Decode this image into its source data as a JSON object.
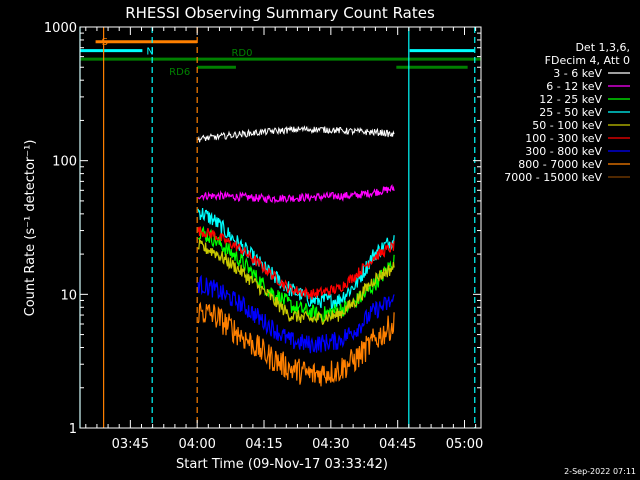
{
  "chart_data": {
    "type": "line",
    "title": "RHESSI Observing Summary Count Rates",
    "xlabel": "Start Time (09-Nov-17 03:33:42)",
    "ylabel": "Count Rate (s⁻¹ detector⁻¹)",
    "yscale": "log",
    "ylim": [
      1,
      1000
    ],
    "xlim_minutes": [
      0,
      90
    ],
    "x_unit": "minutes since 03:33:42",
    "x_ticks": [
      {
        "label": "03:45",
        "t": 11.3
      },
      {
        "label": "04:00",
        "t": 26.3
      },
      {
        "label": "04:15",
        "t": 41.3
      },
      {
        "label": "04:30",
        "t": 56.3
      },
      {
        "label": "04:45",
        "t": 71.3
      },
      {
        "label": "05:00",
        "t": 86.3
      }
    ],
    "y_ticks": [
      {
        "label": "1",
        "v": 1
      },
      {
        "label": "10",
        "v": 10
      },
      {
        "label": "100",
        "v": 100
      },
      {
        "label": "1000",
        "v": 1000
      }
    ],
    "legend": {
      "position": "right",
      "header": [
        "Det 1,3,6,",
        "FDecim 4, Att 0"
      ],
      "entries": [
        {
          "label": "3 - 6 keV",
          "color": "#000000"
        },
        {
          "label": "6 - 12 keV",
          "color": "#ff00ff"
        },
        {
          "label": "12 - 25 keV",
          "color": "#00ff00"
        },
        {
          "label": "25 - 50 keV",
          "color": "#00ffff"
        },
        {
          "label": "50 - 100 keV",
          "color": "#c8c800"
        },
        {
          "label": "100 - 300 keV",
          "color": "#ff0000"
        },
        {
          "label": "300 - 800 keV",
          "color": "#0000ff"
        },
        {
          "label": "800 - 7000 keV",
          "color": "#ff8000"
        },
        {
          "label": "7000 - 15000 keV",
          "color": "#804000"
        }
      ]
    },
    "series_time_range_minutes": [
      26.5,
      70.5
    ],
    "series": [
      {
        "name": "3 - 6 keV",
        "color": "#000000",
        "jitter": 0.025,
        "t": [
          26.5,
          34,
          42,
          50,
          56,
          62,
          68,
          70.5
        ],
        "values": [
          145,
          155,
          165,
          172,
          170,
          165,
          162,
          155
        ]
      },
      {
        "name": "6 - 12 keV",
        "color": "#ff00ff",
        "jitter": 0.03,
        "t": [
          26.5,
          34,
          42,
          50,
          56,
          62,
          66,
          70.5
        ],
        "values": [
          55,
          54,
          52,
          53,
          54,
          55,
          58,
          62
        ]
      },
      {
        "name": "25 - 50 keV",
        "color": "#00ffff",
        "jitter": 0.06,
        "t": [
          26.5,
          30,
          35,
          42,
          47,
          52,
          58,
          62,
          66,
          70.5
        ],
        "values": [
          42,
          36,
          25,
          15,
          11,
          9,
          9,
          12,
          20,
          26
        ]
      },
      {
        "name": "12 - 25 keV",
        "color": "#00ff00",
        "jitter": 0.06,
        "t": [
          26.5,
          30,
          36,
          42,
          48,
          54,
          60,
          64,
          68,
          70.5
        ],
        "values": [
          30,
          26,
          18,
          11,
          8,
          7,
          8,
          10,
          14,
          18
        ]
      },
      {
        "name": "100 - 300 keV",
        "color": "#ff0000",
        "jitter": 0.04,
        "t": [
          26.5,
          30,
          36,
          42,
          47,
          52,
          58,
          62,
          66,
          70.5
        ],
        "values": [
          30,
          28,
          22,
          15,
          11,
          10,
          11,
          14,
          19,
          23
        ]
      },
      {
        "name": "50 - 100 keV",
        "color": "#c8c800",
        "jitter": 0.05,
        "t": [
          26.5,
          30,
          36,
          42,
          47,
          52,
          58,
          62,
          66,
          70.5
        ],
        "values": [
          23,
          21,
          15,
          10,
          7,
          6.5,
          7,
          9,
          13,
          16
        ]
      },
      {
        "name": "300 - 800 keV",
        "color": "#0000ff",
        "jitter": 0.07,
        "t": [
          26.5,
          30,
          36,
          42,
          47,
          52,
          58,
          62,
          66,
          70.5
        ],
        "values": [
          12,
          11,
          8.5,
          6,
          4.5,
          4.2,
          4.5,
          5.5,
          7.5,
          9
        ]
      },
      {
        "name": "800 - 7000 keV",
        "color": "#ff8000",
        "jitter": 0.1,
        "t": [
          26.5,
          30,
          36,
          42,
          47,
          52,
          58,
          62,
          66,
          70.5
        ],
        "values": [
          7.5,
          7,
          5,
          3.5,
          2.8,
          2.5,
          2.7,
          3.3,
          4.5,
          6
        ]
      }
    ],
    "annotations": [
      {
        "type": "bar",
        "label": "S",
        "color": "#ff8000",
        "t0": 3.5,
        "t1": 26.3,
        "y": 775,
        "label_side": "start"
      },
      {
        "type": "bar",
        "label": "N",
        "color": "#00ffff",
        "t0": 0,
        "t1": 14,
        "y": 665,
        "label_side": "end"
      },
      {
        "type": "bar",
        "label": "",
        "color": "#00ffff",
        "t0": 74,
        "t1": 88.5,
        "y": 665,
        "label_side": "none"
      },
      {
        "type": "bar",
        "label": "RD0",
        "color": "#008000",
        "t0": 0,
        "t1": 90,
        "y": 575,
        "label_side": "mid"
      },
      {
        "type": "bar",
        "label": "RD6",
        "color": "#008000",
        "t0": 26.3,
        "t1": 35,
        "y": 500,
        "label_side": "start-left"
      },
      {
        "type": "bar",
        "label": "",
        "color": "#008000",
        "t0": 71,
        "t1": 87,
        "y": 500,
        "label_side": "none"
      },
      {
        "type": "vline",
        "label": "",
        "color": "#00ffff",
        "t": 0,
        "style": "solid"
      },
      {
        "type": "vline",
        "label": "",
        "color": "#ff8000",
        "t": 5.3,
        "style": "solid"
      },
      {
        "type": "vline",
        "label": "",
        "color": "#00ffff",
        "t": 16.2,
        "style": "dashed"
      },
      {
        "type": "vline",
        "label": "",
        "color": "#ff8000",
        "t": 26.3,
        "style": "dashed"
      },
      {
        "type": "vline",
        "label": "",
        "color": "#00ffff",
        "t": 73.8,
        "style": "solid"
      },
      {
        "type": "vline",
        "label": "",
        "color": "#00ffff",
        "t": 88.6,
        "style": "dashed"
      }
    ],
    "date_stamp": "2-Sep-2022 07:11"
  }
}
